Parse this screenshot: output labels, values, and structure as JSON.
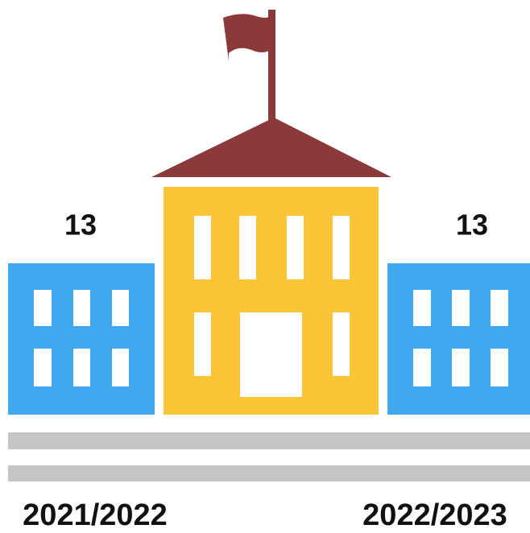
{
  "items": [
    {
      "value": 13,
      "label": "2021/2022"
    },
    {
      "value": 13,
      "label": "2022/2023"
    }
  ]
}
